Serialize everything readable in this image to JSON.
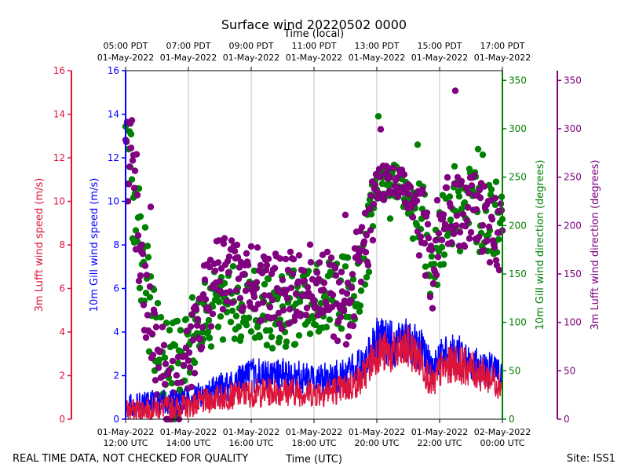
{
  "chart_data": {
    "type": "line+scatter",
    "title": "Surface wind 20220502 0000",
    "top_xlabel": "Time (local)",
    "xlabel": "Time (UTC)",
    "footer_left": "REAL TIME DATA, NOT CHECKED FOR QUALITY",
    "footer_right": "Site: ISS1",
    "x_range_hours_utc": [
      12,
      24
    ],
    "grid": "vertical",
    "bottom_ticks": [
      {
        "hour": 12,
        "line1": "01-May-2022",
        "line2": "12:00 UTC"
      },
      {
        "hour": 14,
        "line1": "01-May-2022",
        "line2": "14:00 UTC"
      },
      {
        "hour": 16,
        "line1": "01-May-2022",
        "line2": "16:00 UTC"
      },
      {
        "hour": 18,
        "line1": "01-May-2022",
        "line2": "18:00 UTC"
      },
      {
        "hour": 20,
        "line1": "01-May-2022",
        "line2": "20:00 UTC"
      },
      {
        "hour": 22,
        "line1": "01-May-2022",
        "line2": "22:00 UTC"
      },
      {
        "hour": 24,
        "line1": "02-May-2022",
        "line2": "00:00 UTC"
      }
    ],
    "top_ticks": [
      {
        "hour": 12,
        "line1": "05:00 PDT",
        "line2": "01-May-2022"
      },
      {
        "hour": 14,
        "line1": "07:00 PDT",
        "line2": "01-May-2022"
      },
      {
        "hour": 16,
        "line1": "09:00 PDT",
        "line2": "01-May-2022"
      },
      {
        "hour": 18,
        "line1": "11:00 PDT",
        "line2": "01-May-2022"
      },
      {
        "hour": 20,
        "line1": "13:00 PDT",
        "line2": "01-May-2022"
      },
      {
        "hour": 22,
        "line1": "15:00 PDT",
        "line2": "01-May-2022"
      },
      {
        "hour": 24,
        "line1": "17:00 PDT",
        "line2": "01-May-2022"
      }
    ],
    "axes": {
      "lufft_speed": {
        "label": "3m Lufft wind speed (m/s)",
        "color": "#dc143c",
        "range": [
          0,
          16
        ],
        "ticks": [
          0,
          2,
          4,
          6,
          8,
          10,
          12,
          14,
          16
        ]
      },
      "gill_speed": {
        "label": "10m Gill wind speed (m/s)",
        "color": "#0000ff",
        "range": [
          0,
          16
        ],
        "ticks": [
          0,
          2,
          4,
          6,
          8,
          10,
          12,
          14,
          16
        ]
      },
      "gill_dir": {
        "label": "10m Gill wind direction (degrees)",
        "color": "#008000",
        "range": [
          0,
          360
        ],
        "ticks": [
          0,
          50,
          100,
          150,
          200,
          250,
          300,
          350
        ]
      },
      "lufft_dir": {
        "label": "3m Lufft wind direction (degrees)",
        "color": "#800080",
        "range": [
          0,
          360
        ],
        "ticks": [
          0,
          50,
          100,
          150,
          200,
          250,
          300,
          350
        ]
      }
    },
    "series": [
      {
        "name": "10m Gill wind speed",
        "type": "line",
        "color": "#0000ff",
        "profile": [
          [
            12.0,
            0.6
          ],
          [
            13.0,
            0.8
          ],
          [
            14.0,
            0.9
          ],
          [
            15.0,
            1.4
          ],
          [
            16.0,
            2.0
          ],
          [
            17.0,
            2.0
          ],
          [
            18.0,
            1.8
          ],
          [
            19.0,
            2.0
          ],
          [
            19.5,
            2.4
          ],
          [
            20.0,
            3.6
          ],
          [
            20.7,
            3.4
          ],
          [
            21.0,
            3.6
          ],
          [
            21.4,
            3.2
          ],
          [
            21.8,
            2.1
          ],
          [
            22.0,
            2.8
          ],
          [
            22.5,
            3.0
          ],
          [
            23.0,
            2.6
          ],
          [
            24.0,
            2.0
          ]
        ]
      },
      {
        "name": "3m Lufft wind speed",
        "type": "line",
        "color": "#dc143c",
        "profile": [
          [
            12.0,
            0.4
          ],
          [
            13.0,
            0.5
          ],
          [
            14.0,
            0.6
          ],
          [
            15.0,
            1.0
          ],
          [
            16.0,
            1.2
          ],
          [
            17.0,
            1.3
          ],
          [
            18.0,
            1.2
          ],
          [
            19.0,
            1.4
          ],
          [
            19.5,
            1.8
          ],
          [
            20.0,
            3.1
          ],
          [
            20.7,
            3.0
          ],
          [
            21.0,
            3.3
          ],
          [
            21.4,
            2.7
          ],
          [
            21.8,
            1.5
          ],
          [
            22.0,
            2.2
          ],
          [
            22.5,
            2.6
          ],
          [
            23.0,
            2.3
          ],
          [
            24.0,
            1.6
          ]
        ]
      },
      {
        "name": "10m Gill wind direction",
        "type": "scatter",
        "color": "#008000",
        "profile": [
          [
            12.0,
            280
          ],
          [
            12.3,
            220
          ],
          [
            12.6,
            150
          ],
          [
            13.0,
            80
          ],
          [
            13.4,
            40
          ],
          [
            13.8,
            60
          ],
          [
            14.0,
            80
          ],
          [
            14.5,
            110
          ],
          [
            15.0,
            120
          ],
          [
            16.0,
            120
          ],
          [
            17.0,
            110
          ],
          [
            18.0,
            120
          ],
          [
            19.0,
            130
          ],
          [
            19.5,
            140
          ],
          [
            20.0,
            240
          ],
          [
            20.5,
            250
          ],
          [
            21.0,
            230
          ],
          [
            21.5,
            200
          ],
          [
            21.8,
            150
          ],
          [
            22.0,
            190
          ],
          [
            22.5,
            210
          ],
          [
            23.0,
            220
          ],
          [
            24.0,
            190
          ]
        ]
      },
      {
        "name": "3m Lufft wind direction",
        "type": "scatter",
        "color": "#800080",
        "profile": [
          [
            12.0,
            290
          ],
          [
            12.3,
            240
          ],
          [
            12.6,
            120
          ],
          [
            13.0,
            50
          ],
          [
            13.4,
            30
          ],
          [
            13.8,
            40
          ],
          [
            14.0,
            60
          ],
          [
            14.5,
            120
          ],
          [
            15.0,
            150
          ],
          [
            16.0,
            140
          ],
          [
            17.0,
            130
          ],
          [
            18.0,
            150
          ],
          [
            19.0,
            110
          ],
          [
            19.5,
            160
          ],
          [
            20.0,
            240
          ],
          [
            20.5,
            250
          ],
          [
            21.0,
            235
          ],
          [
            21.5,
            195
          ],
          [
            21.8,
            150
          ],
          [
            22.0,
            210
          ],
          [
            22.5,
            215
          ],
          [
            23.0,
            220
          ],
          [
            24.0,
            190
          ]
        ]
      }
    ]
  }
}
